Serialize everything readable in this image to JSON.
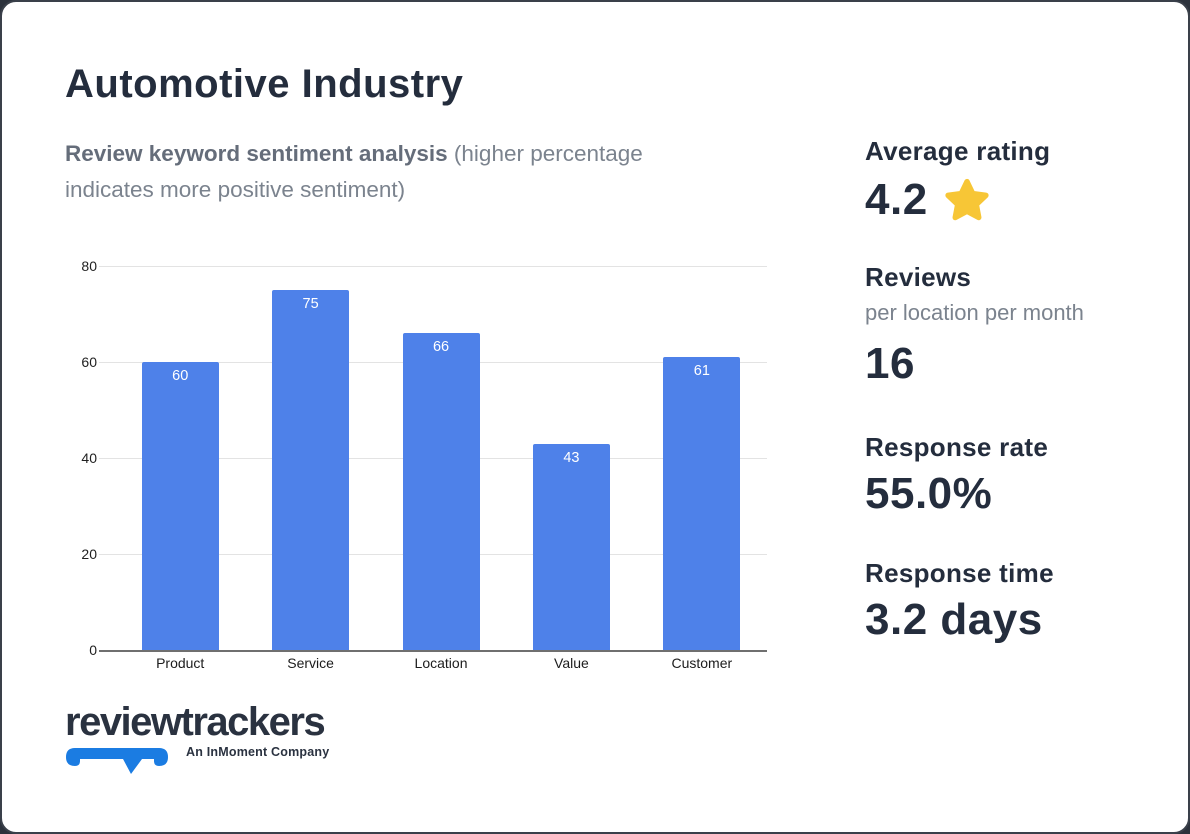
{
  "header": {
    "title": "Automotive Industry",
    "subtitle_bold": "Review keyword sentiment analysis",
    "subtitle_rest": " (higher percentage indicates more positive sentiment)"
  },
  "chart_data": {
    "type": "bar",
    "title": "Review keyword sentiment analysis",
    "categories": [
      "Product",
      "Service",
      "Location",
      "Value",
      "Customer"
    ],
    "values": [
      60,
      75,
      66,
      43,
      61
    ],
    "xlabel": "",
    "ylabel": "",
    "ylim": [
      0,
      80
    ],
    "y_ticks": [
      0,
      20,
      40,
      60,
      80
    ],
    "grid": true,
    "legend": "none",
    "bar_color": "#4e81e9",
    "value_label_color": "#ffffff",
    "value_label_position": "inside-top"
  },
  "stats": [
    {
      "label": "Average rating",
      "value": "4.2",
      "icon": "star-icon",
      "icon_color": "#f7c636"
    },
    {
      "label": "Reviews",
      "sublabel": "per location per month",
      "value": "16"
    },
    {
      "label": "Response rate",
      "value": "55.0%"
    },
    {
      "label": "Response time",
      "value": "3.2 days"
    }
  ],
  "footer": {
    "brand": "reviewtrackers",
    "tagline": "An InMoment Company",
    "bubble_color": "#1b7ce2"
  },
  "colors": {
    "card_bg": "#ffffff",
    "outer_border": "#3a404a",
    "heading": "#242d3d",
    "subtitle_bold": "#656d7a",
    "muted_text": "#7b838e",
    "gridline": "#e3e3e3",
    "axis_line": "#6f6f6f",
    "bar": "#4e81e9",
    "star": "#f7c636",
    "logo_navy": "#2a3240",
    "logo_blue": "#1b7ce2"
  }
}
